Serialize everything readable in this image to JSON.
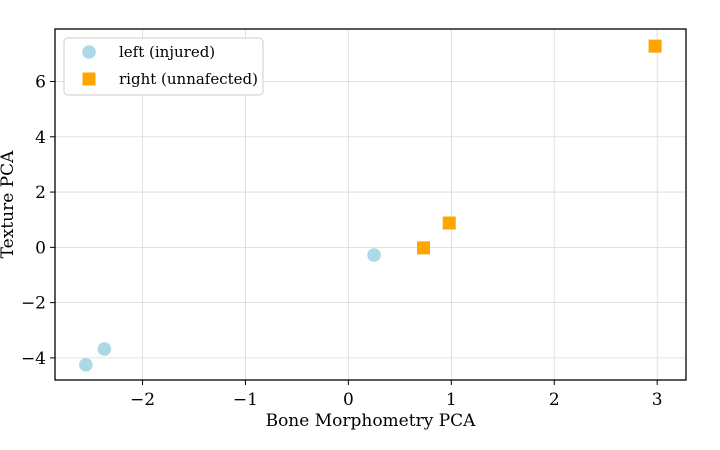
{
  "chart_data": {
    "type": "scatter",
    "xlabel": "Bone Morphometry PCA",
    "ylabel": "Texture PCA",
    "xlim": [
      -2.85,
      3.28
    ],
    "ylim": [
      -4.8,
      7.9
    ],
    "xticks": [
      -2,
      -1,
      0,
      1,
      2,
      3
    ],
    "yticks": [
      -4,
      -2,
      0,
      2,
      4,
      6
    ],
    "grid": true,
    "legend_position": "top-left",
    "series": [
      {
        "name": "left (injured)",
        "marker": "circle",
        "color": "#add8e6",
        "x": [
          0.25,
          -2.55,
          -2.37
        ],
        "y": [
          -0.28,
          -4.25,
          -3.68
        ]
      },
      {
        "name": "right (unnafected)",
        "marker": "square",
        "color": "#ffa500",
        "x": [
          0.73,
          0.98,
          2.98
        ],
        "y": [
          -0.02,
          0.88,
          7.28
        ]
      }
    ]
  }
}
